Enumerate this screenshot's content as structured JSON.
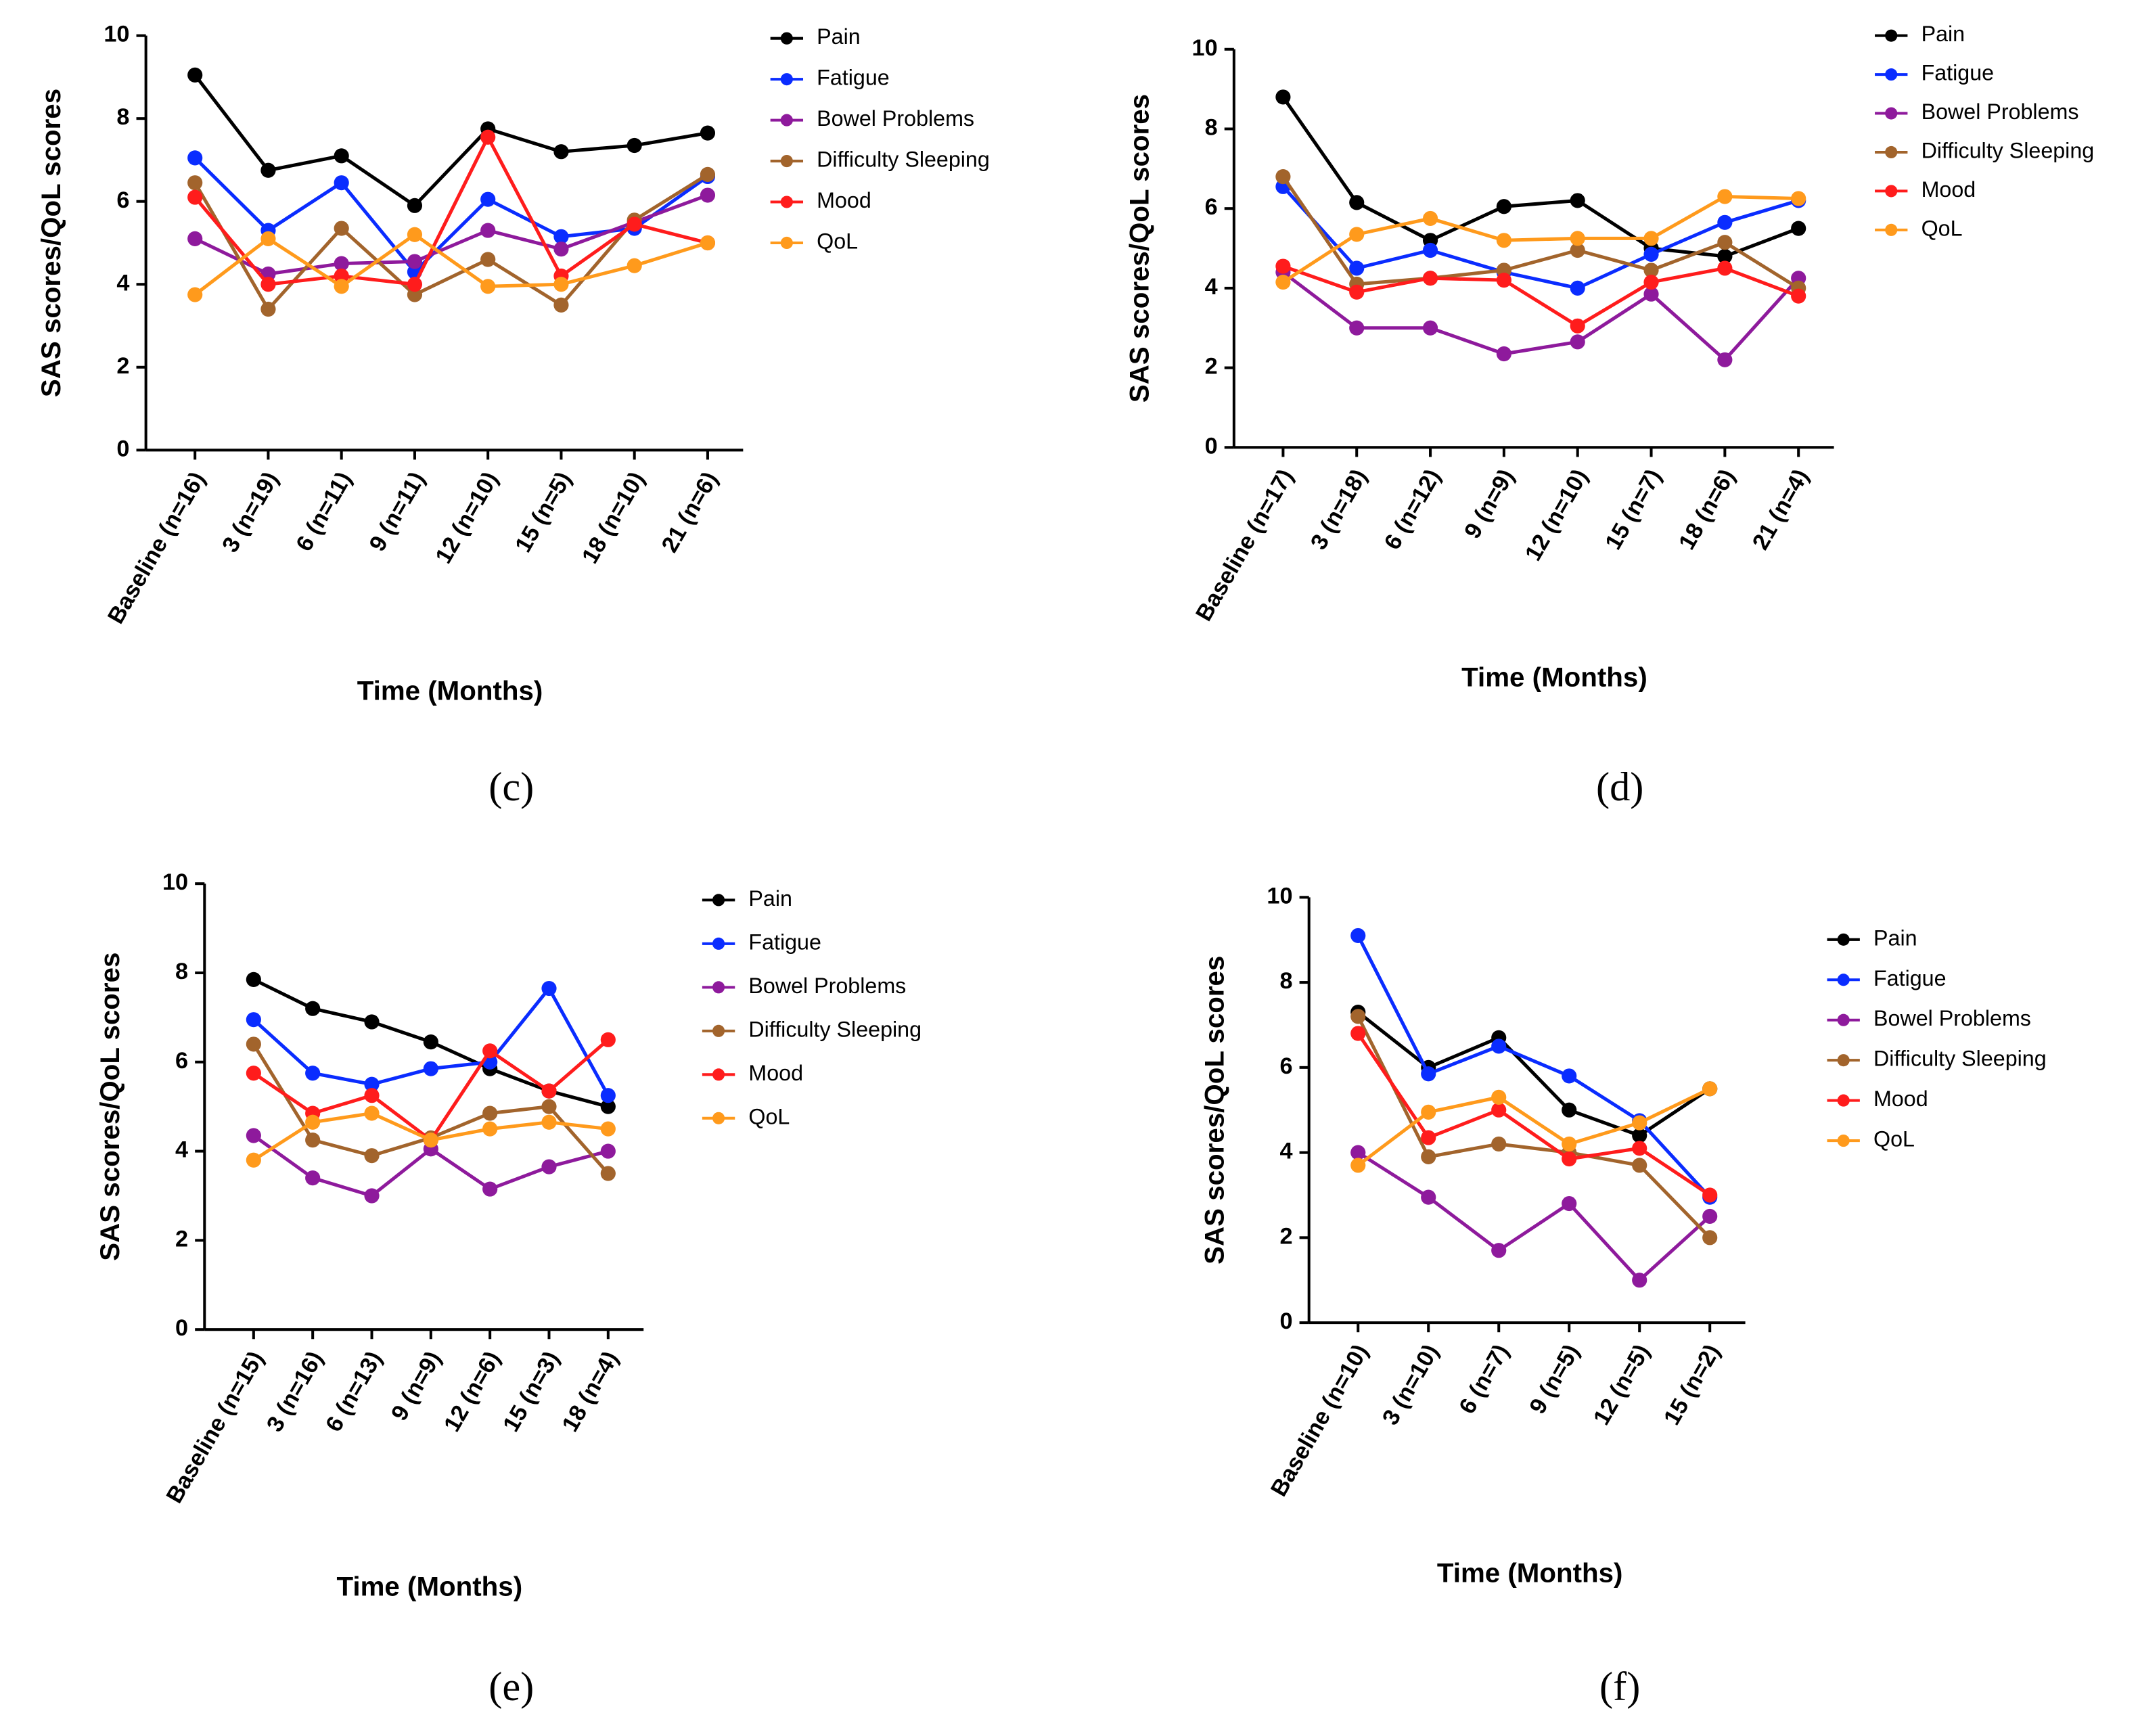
{
  "chart_data": [
    {
      "type": "line",
      "label": "(c)",
      "xlabel": "Time (Months)",
      "ylabel": "SAS scores/QoL scores",
      "categories": [
        "Baseline (n=16)",
        "3 (n=19)",
        "6 (n=11)",
        "9 (n=11)",
        "12 (n=10)",
        "15 (n=5)",
        "18 (n=10)",
        "21 (n=6)"
      ],
      "ylim": [
        0,
        10
      ],
      "yticks": [
        0,
        2,
        4,
        6,
        8,
        10
      ],
      "series": [
        {
          "name": "Pain",
          "color": "#000000",
          "values": [
            9.05,
            6.75,
            7.1,
            5.9,
            7.75,
            7.2,
            7.35,
            7.65
          ]
        },
        {
          "name": "Fatigue",
          "color": "#0a2cff",
          "values": [
            7.05,
            5.3,
            6.45,
            4.3,
            6.05,
            5.15,
            5.35,
            6.6
          ]
        },
        {
          "name": "Bowel Problems",
          "color": "#8e1a9c",
          "values": [
            5.1,
            4.25,
            4.5,
            4.55,
            5.3,
            4.85,
            5.5,
            6.15
          ]
        },
        {
          "name": "Difficulty Sleeping",
          "color": "#a2642c",
          "values": [
            6.45,
            3.4,
            5.35,
            3.75,
            4.6,
            3.5,
            5.55,
            6.65
          ]
        },
        {
          "name": "Mood",
          "color": "#ff1c1c",
          "values": [
            6.1,
            4.0,
            4.2,
            4.0,
            7.55,
            4.2,
            5.45,
            5.0
          ]
        },
        {
          "name": "QoL",
          "color": "#ff9a1c",
          "values": [
            3.75,
            5.1,
            3.95,
            5.2,
            3.95,
            4.0,
            4.45,
            5.0
          ]
        }
      ]
    },
    {
      "type": "line",
      "label": "(d)",
      "xlabel": "Time (Months)",
      "ylabel": "SAS scores/QoL scores",
      "categories": [
        "Baseline (n=17)",
        "3 (n=18)",
        "6 (n=12)",
        "9 (n=9)",
        "12 (n=10)",
        "15 (n=7)",
        "18 (n=6)",
        "21 (n=4)"
      ],
      "ylim": [
        0,
        10
      ],
      "yticks": [
        0,
        2,
        4,
        6,
        8,
        10
      ],
      "series": [
        {
          "name": "Pain",
          "color": "#000000",
          "values": [
            8.8,
            6.15,
            5.2,
            6.05,
            6.2,
            5.0,
            4.8,
            5.5
          ]
        },
        {
          "name": "Fatigue",
          "color": "#0a2cff",
          "values": [
            6.55,
            4.5,
            4.95,
            4.4,
            4.0,
            4.85,
            5.65,
            6.2
          ]
        },
        {
          "name": "Bowel Problems",
          "color": "#8e1a9c",
          "values": [
            4.4,
            3.0,
            3.0,
            2.35,
            2.65,
            3.85,
            2.2,
            4.25
          ]
        },
        {
          "name": "Difficulty Sleeping",
          "color": "#a2642c",
          "values": [
            6.8,
            4.1,
            4.25,
            4.45,
            4.95,
            4.45,
            5.15,
            4.0
          ]
        },
        {
          "name": "Mood",
          "color": "#ff1c1c",
          "values": [
            4.55,
            3.9,
            4.25,
            4.2,
            3.05,
            4.15,
            4.5,
            3.8
          ]
        },
        {
          "name": "QoL",
          "color": "#ff9a1c",
          "values": [
            4.15,
            5.35,
            5.75,
            5.2,
            5.25,
            5.25,
            6.3,
            6.25
          ]
        }
      ]
    },
    {
      "type": "line",
      "label": "(e)",
      "xlabel": "Time (Months)",
      "ylabel": "SAS scores/QoL scores",
      "categories": [
        "Baseline (n=15)",
        "3 (n=16)",
        "6 (n=13)",
        "9 (n=9)",
        "12 (n=6)",
        "15 (n=3)",
        "18 (n=4)"
      ],
      "ylim": [
        0,
        10
      ],
      "yticks": [
        0,
        2,
        4,
        6,
        8,
        10
      ],
      "series": [
        {
          "name": "Pain",
          "color": "#000000",
          "values": [
            7.85,
            7.2,
            6.9,
            6.45,
            5.85,
            5.35,
            5.0
          ]
        },
        {
          "name": "Fatigue",
          "color": "#0a2cff",
          "values": [
            6.95,
            5.75,
            5.5,
            5.85,
            6.0,
            7.65,
            5.25
          ]
        },
        {
          "name": "Bowel Problems",
          "color": "#8e1a9c",
          "values": [
            4.35,
            3.4,
            3.0,
            4.05,
            3.15,
            3.65,
            4.0
          ]
        },
        {
          "name": "Difficulty Sleeping",
          "color": "#a2642c",
          "values": [
            6.4,
            4.25,
            3.9,
            4.3,
            4.85,
            5.0,
            3.5
          ]
        },
        {
          "name": "Mood",
          "color": "#ff1c1c",
          "values": [
            5.75,
            4.85,
            5.25,
            4.25,
            6.25,
            5.35,
            6.5
          ]
        },
        {
          "name": "QoL",
          "color": "#ff9a1c",
          "values": [
            3.8,
            4.65,
            4.85,
            4.25,
            4.5,
            4.65,
            4.5
          ]
        }
      ]
    },
    {
      "type": "line",
      "label": "(f)",
      "xlabel": "Time (Months)",
      "ylabel": "SAS scores/QoL scores",
      "categories": [
        "Baseline (n=10)",
        "3 (n=10)",
        "6 (n=7)",
        "9 (n=5)",
        "12 (n=5)",
        "15 (n=2)"
      ],
      "ylim": [
        0,
        10
      ],
      "yticks": [
        0,
        2,
        4,
        6,
        8,
        10
      ],
      "series": [
        {
          "name": "Pain",
          "color": "#000000",
          "values": [
            7.3,
            6.0,
            6.7,
            5.0,
            4.4,
            5.5
          ]
        },
        {
          "name": "Fatigue",
          "color": "#0a2cff",
          "values": [
            9.1,
            5.85,
            6.5,
            5.8,
            4.75,
            2.95
          ]
        },
        {
          "name": "Bowel Problems",
          "color": "#8e1a9c",
          "values": [
            4.0,
            2.95,
            1.7,
            2.8,
            1.0,
            2.5
          ]
        },
        {
          "name": "Difficulty Sleeping",
          "color": "#a2642c",
          "values": [
            7.2,
            3.9,
            4.2,
            4.0,
            3.7,
            2.0
          ]
        },
        {
          "name": "Mood",
          "color": "#ff1c1c",
          "values": [
            6.8,
            4.35,
            5.0,
            3.85,
            4.1,
            3.0
          ]
        },
        {
          "name": "QoL",
          "color": "#ff9a1c",
          "values": [
            3.7,
            4.95,
            5.3,
            4.2,
            4.7,
            5.5
          ]
        }
      ]
    }
  ]
}
